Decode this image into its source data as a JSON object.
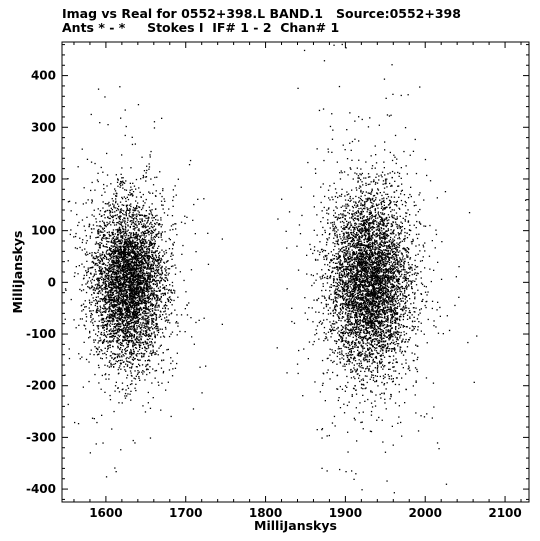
{
  "header": {
    "line1": "Imag vs Real for 0552+398.L BAND.1   Source:0552+398",
    "line2": "Ants * - *     Stokes I  IF# 1 - 2  Chan# 1"
  },
  "chart_data": {
    "type": "scatter",
    "xlabel": "MilliJanskys",
    "ylabel": "MilliJanskys",
    "xlim": [
      1545,
      2130
    ],
    "ylim": [
      -425,
      465
    ],
    "xticks": [
      1600,
      1700,
      1800,
      1900,
      2000,
      2100
    ],
    "yticks": [
      -400,
      -300,
      -200,
      -100,
      0,
      100,
      200,
      300,
      400
    ],
    "grid": false,
    "series": [
      {
        "clusters": [
          {
            "center": [
              1628,
              0
            ],
            "x_spread": 22,
            "y_spread": 75,
            "approx_points": 5000
          },
          {
            "center": [
              1930,
              0
            ],
            "x_spread": 25,
            "y_spread": 85,
            "approx_points": 5500
          }
        ],
        "outliers": [
          [
            1848,
            450
          ],
          [
            1873,
            430
          ],
          [
            1885,
            460
          ],
          [
            1900,
            455
          ],
          [
            1590,
            375
          ],
          [
            1598,
            360
          ],
          [
            1640,
            345
          ],
          [
            1660,
            300
          ],
          [
            2125,
            160
          ],
          [
            1745,
            85
          ],
          [
            1745,
            -80
          ],
          [
            1825,
            100
          ],
          [
            1840,
            -175
          ],
          [
            1552,
            -235
          ],
          [
            1560,
            -270
          ],
          [
            1588,
            -270
          ],
          [
            1600,
            -375
          ],
          [
            1612,
            -365
          ],
          [
            1655,
            -300
          ],
          [
            1870,
            -300
          ],
          [
            1900,
            -365
          ],
          [
            1910,
            -380
          ],
          [
            1920,
            -400
          ],
          [
            2010,
            -240
          ],
          [
            2020,
            80
          ]
        ]
      }
    ]
  }
}
